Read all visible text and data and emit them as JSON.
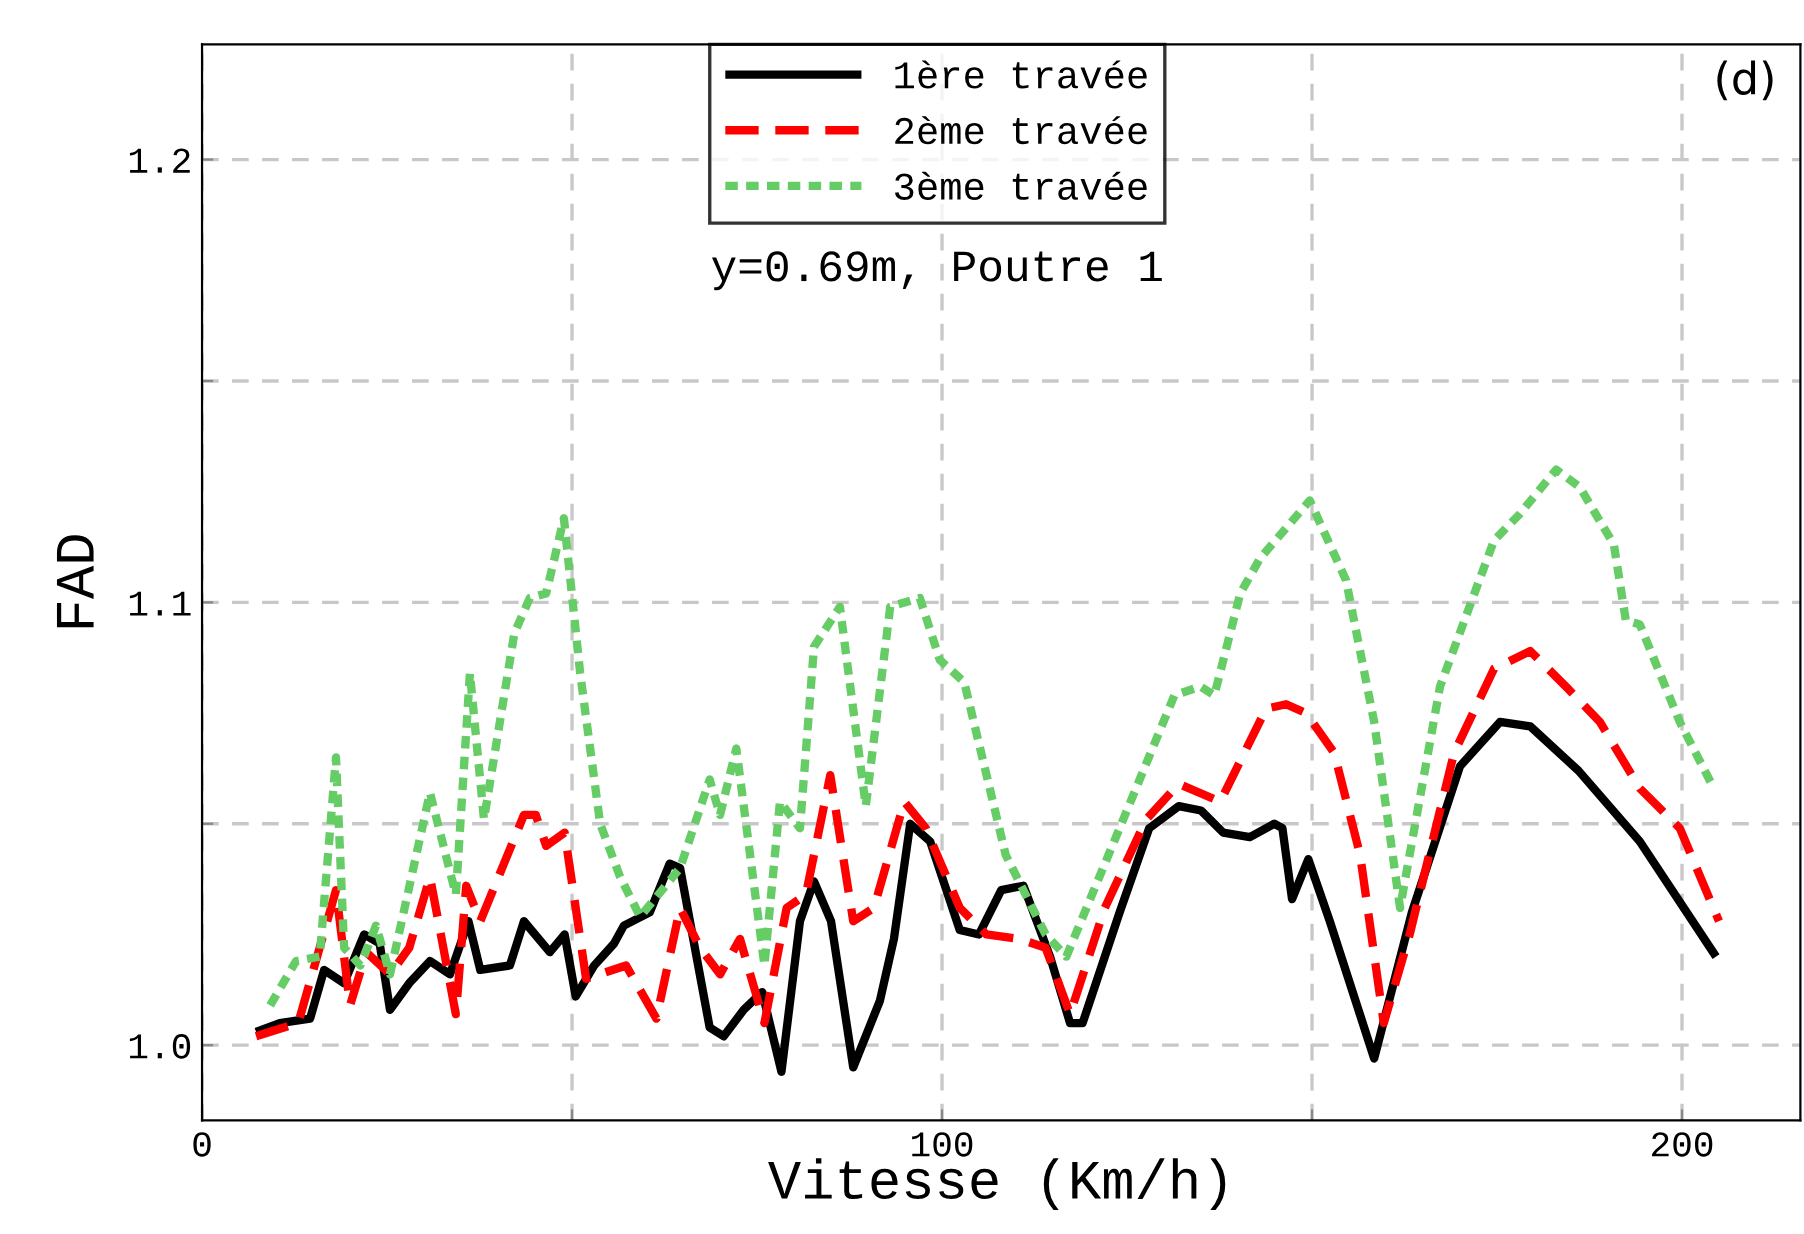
{
  "chart_data": {
    "type": "line",
    "xlabel": "Vitesse (Km/h)",
    "ylabel": "FAD",
    "annotations": [
      "y=0.69m, Poutre 1",
      "(d)"
    ],
    "xlim": [
      0,
      216
    ],
    "ylim": [
      0.983,
      1.226
    ],
    "xticks": [
      0,
      {
        "value": 50,
        "label": null
      },
      100,
      {
        "value": 150,
        "label": null
      },
      200
    ],
    "yticks": [
      {
        "value": 1.0,
        "label": "1.0"
      },
      {
        "value": 1.05,
        "label": null
      },
      1.1,
      {
        "value": 1.15,
        "label": null
      },
      1.2
    ],
    "grid": true,
    "legend": "top",
    "marker": "none",
    "series": [
      {
        "name": "1ère travée",
        "color": "#000000",
        "line_style": "solid",
        "x": [
          7.3,
          10.5,
          14.6,
          16.5,
          19.2,
          21.9,
          24,
          25.4,
          28,
          30.8,
          33.5,
          36,
          37.6,
          41.6,
          43.5,
          47,
          49,
          50.5,
          53,
          55.7,
          57,
          60.5,
          63.2,
          64.6,
          68.6,
          70.5,
          73.2,
          75.7,
          78.3,
          80.8,
          82.7,
          85,
          88,
          91.6,
          93.5,
          95.7,
          98.4,
          102.4,
          105,
          108,
          111,
          114.6,
          117.3,
          119,
          124,
          128,
          132,
          135,
          138,
          141.6,
          144.9,
          146,
          147.3,
          149.5,
          152.4,
          158.4,
          163.5,
          170,
          175.4,
          179.5,
          186,
          194.3,
          204.6
        ],
        "values": [
          1.003,
          1.005,
          1.006,
          1.017,
          1.014,
          1.025,
          1.023,
          1.008,
          1.014,
          1.019,
          1.016,
          1.028,
          1.017,
          1.018,
          1.028,
          1.021,
          1.025,
          1.011,
          1.018,
          1.023,
          1.027,
          1.03,
          1.041,
          1.04,
          1.004,
          1.002,
          1.008,
          1.012,
          0.994,
          1.028,
          1.037,
          1.028,
          0.995,
          1.01,
          1.024,
          1.05,
          1.046,
          1.026,
          1.025,
          1.035,
          1.036,
          1.02,
          1.005,
          1.005,
          1.03,
          1.049,
          1.054,
          1.053,
          1.048,
          1.047,
          1.05,
          1.049,
          1.033,
          1.042,
          1.028,
          0.997,
          1.03,
          1.063,
          1.073,
          1.072,
          1.062,
          1.046,
          1.02
        ]
      },
      {
        "name": "2ème travée",
        "color": "#ff0000",
        "line_style": "dashed",
        "x": [
          7.3,
          13,
          18.1,
          20,
          22.2,
          25.4,
          28,
          30.8,
          34.3,
          35.7,
          37.6,
          43.5,
          45.1,
          46.5,
          49,
          51.9,
          57.3,
          61.4,
          64.6,
          67.3,
          70,
          72.7,
          76,
          79,
          81.6,
          84.9,
          88,
          90.8,
          94.9,
          97.8,
          102.4,
          106,
          110.5,
          114,
          117.3,
          122,
          127.6,
          132,
          137.6,
          143.8,
          146.5,
          149.2,
          153,
          156.5,
          159.7,
          163.2,
          169.2,
          174.6,
          179.5,
          184.3,
          188.9,
          194.3,
          199.7,
          205
        ],
        "values": [
          1.002,
          1.005,
          1.035,
          1.009,
          1.021,
          1.016,
          1.022,
          1.038,
          1.007,
          1.036,
          1.028,
          1.052,
          1.052,
          1.045,
          1.048,
          1.015,
          1.018,
          1.006,
          1.031,
          1.022,
          1.016,
          1.024,
          1.005,
          1.031,
          1.034,
          1.061,
          1.028,
          1.031,
          1.055,
          1.049,
          1.031,
          1.025,
          1.024,
          1.022,
          1.007,
          1.031,
          1.051,
          1.059,
          1.055,
          1.076,
          1.077,
          1.075,
          1.066,
          1.043,
          1.005,
          1.025,
          1.066,
          1.085,
          1.089,
          1.081,
          1.073,
          1.058,
          1.049,
          1.028
        ]
      },
      {
        "name": "3ème travée",
        "color": "#66cc66",
        "line_style": "dotted",
        "x": [
          9.2,
          12.7,
          15.9,
          18.1,
          19.2,
          21.4,
          23.5,
          25.4,
          30.8,
          34.3,
          36.2,
          38.1,
          42.2,
          44.3,
          46.5,
          48.9,
          51.1,
          53.8,
          56.5,
          59.2,
          64.6,
          68.6,
          70,
          72.2,
          76,
          78.1,
          80.8,
          82.7,
          86.2,
          89.7,
          93,
          97,
          99.7,
          103,
          108.6,
          114,
          116.8,
          124,
          131.4,
          134.9,
          136.8,
          140.3,
          143,
          149.7,
          154.6,
          158.4,
          161.9,
          167.3,
          174.6,
          178.1,
          183,
          186.2,
          190.8,
          192.4,
          194.3,
          199.7,
          204.3
        ],
        "values": [
          1.009,
          1.019,
          1.02,
          1.065,
          1.022,
          1.018,
          1.027,
          1.016,
          1.057,
          1.034,
          1.084,
          1.051,
          1.093,
          1.101,
          1.102,
          1.119,
          1.084,
          1.05,
          1.038,
          1.029,
          1.04,
          1.06,
          1.052,
          1.067,
          1.018,
          1.055,
          1.049,
          1.09,
          1.099,
          1.054,
          1.099,
          1.101,
          1.087,
          1.082,
          1.043,
          1.025,
          1.02,
          1.049,
          1.079,
          1.081,
          1.079,
          1.102,
          1.11,
          1.123,
          1.105,
          1.073,
          1.031,
          1.081,
          1.114,
          1.12,
          1.13,
          1.126,
          1.113,
          1.096,
          1.095,
          1.073,
          1.058
        ]
      }
    ]
  }
}
